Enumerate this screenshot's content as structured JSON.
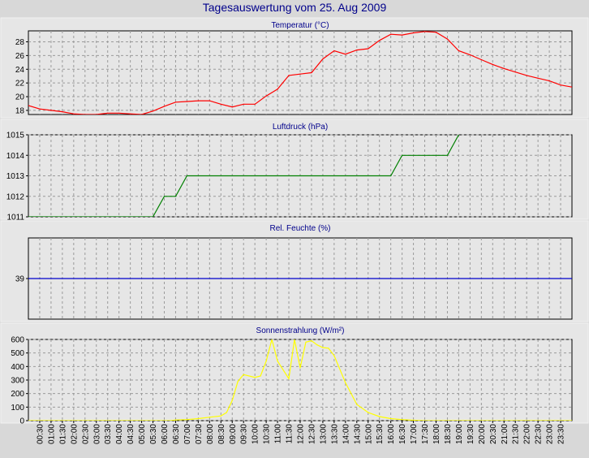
{
  "page": {
    "title": "Tagesauswertung vom 25. Aug 2009"
  },
  "chart_data": [
    {
      "type": "line",
      "title": "Temperatur (°C)",
      "color": "#ff0000",
      "ylim": [
        17.4,
        29.6
      ],
      "yticks": [
        18,
        20,
        22,
        24,
        26,
        28
      ],
      "x": [
        "00:00",
        "00:30",
        "01:00",
        "01:30",
        "02:00",
        "02:30",
        "03:00",
        "03:30",
        "04:00",
        "04:30",
        "05:00",
        "05:30",
        "06:00",
        "06:30",
        "07:00",
        "07:30",
        "08:00",
        "08:30",
        "09:00",
        "09:30",
        "10:00",
        "10:30",
        "11:00",
        "11:30",
        "12:00",
        "12:30",
        "13:00",
        "13:30",
        "14:00",
        "14:30",
        "15:00",
        "15:30",
        "16:00",
        "16:30",
        "17:00",
        "17:30",
        "18:00",
        "18:30",
        "19:00",
        "19:30",
        "20:00",
        "20:30",
        "21:00",
        "21:30",
        "22:00",
        "22:30",
        "23:00",
        "23:30",
        "24:00"
      ],
      "values": [
        18.7,
        18.2,
        18.0,
        17.8,
        17.5,
        17.4,
        17.4,
        17.6,
        17.6,
        17.5,
        17.4,
        17.9,
        18.6,
        19.2,
        19.3,
        19.4,
        19.4,
        18.9,
        18.5,
        18.9,
        18.9,
        20.1,
        21.1,
        23.1,
        23.3,
        23.5,
        25.5,
        26.7,
        26.2,
        26.8,
        27.0,
        28.2,
        29.1,
        29.0,
        29.3,
        29.5,
        29.4,
        28.4,
        26.7,
        26.1,
        25.4,
        24.7,
        24.1,
        23.6,
        23.1,
        22.7,
        22.3,
        21.7,
        21.4
      ],
      "grid": true
    },
    {
      "type": "line",
      "title": "Luftdruck (hPa)",
      "color": "#008000",
      "step": true,
      "ylim": [
        1011,
        1015
      ],
      "yticks": [
        1011,
        1012,
        1013,
        1014,
        1015
      ],
      "x": [
        "00:00",
        "11:00",
        "12:00",
        "13:00",
        "14:00",
        "15:00",
        "32:00",
        "33:00",
        "37:00",
        "38:00"
      ],
      "x_hours": [
        0,
        11,
        12,
        13,
        14,
        15,
        32,
        33,
        37,
        38
      ],
      "values": [
        1011,
        1011,
        1012,
        1012,
        1013,
        1013,
        1013,
        1014,
        1014,
        1015
      ],
      "grid": true
    },
    {
      "type": "line",
      "title": "Rel. Feuchte (%)",
      "color": "#0000cd",
      "ylim": [
        37,
        41
      ],
      "yticks": [
        39
      ],
      "values": [
        39,
        39
      ],
      "grid": true
    },
    {
      "type": "area",
      "title": "Sonnenstrahlung (W/m²)",
      "color": "#ffff00",
      "ylim": [
        0,
        600
      ],
      "yticks": [
        0,
        100,
        200,
        300,
        400,
        500,
        600
      ],
      "x_hours": [
        0,
        12.5,
        13,
        14,
        15,
        16,
        17,
        17.5,
        18,
        18.5,
        19,
        20,
        20.5,
        21,
        21.5,
        22,
        23,
        23.5,
        24,
        24.5,
        25,
        25.5,
        26,
        26.5,
        27,
        28,
        29,
        30,
        31,
        32,
        33,
        34,
        35,
        36,
        48
      ],
      "values": [
        0,
        0,
        5,
        8,
        15,
        25,
        35,
        60,
        150,
        290,
        340,
        320,
        330,
        440,
        600,
        440,
        310,
        600,
        390,
        580,
        590,
        560,
        540,
        535,
        480,
        280,
        120,
        60,
        30,
        15,
        8,
        3,
        0,
        0,
        0
      ],
      "grid": true
    }
  ],
  "x_axis": {
    "tick_labels": [
      "00:30",
      "01:00",
      "01:30",
      "02:00",
      "02:30",
      "03:00",
      "03:30",
      "04:00",
      "04:30",
      "05:00",
      "05:30",
      "06:00",
      "06:30",
      "07:00",
      "07:30",
      "08:00",
      "08:30",
      "09:00",
      "09:30",
      "10:00",
      "10:30",
      "11:00",
      "11:30",
      "12:00",
      "12:30",
      "13:00",
      "13:30",
      "14:00",
      "14:30",
      "15:00",
      "15:30",
      "16:00",
      "16:30",
      "17:00",
      "17:30",
      "18:00",
      "18:30",
      "19:00",
      "19:30",
      "20:00",
      "20:30",
      "21:00",
      "21:30",
      "22:00",
      "22:30",
      "23:00",
      "23:30"
    ]
  }
}
